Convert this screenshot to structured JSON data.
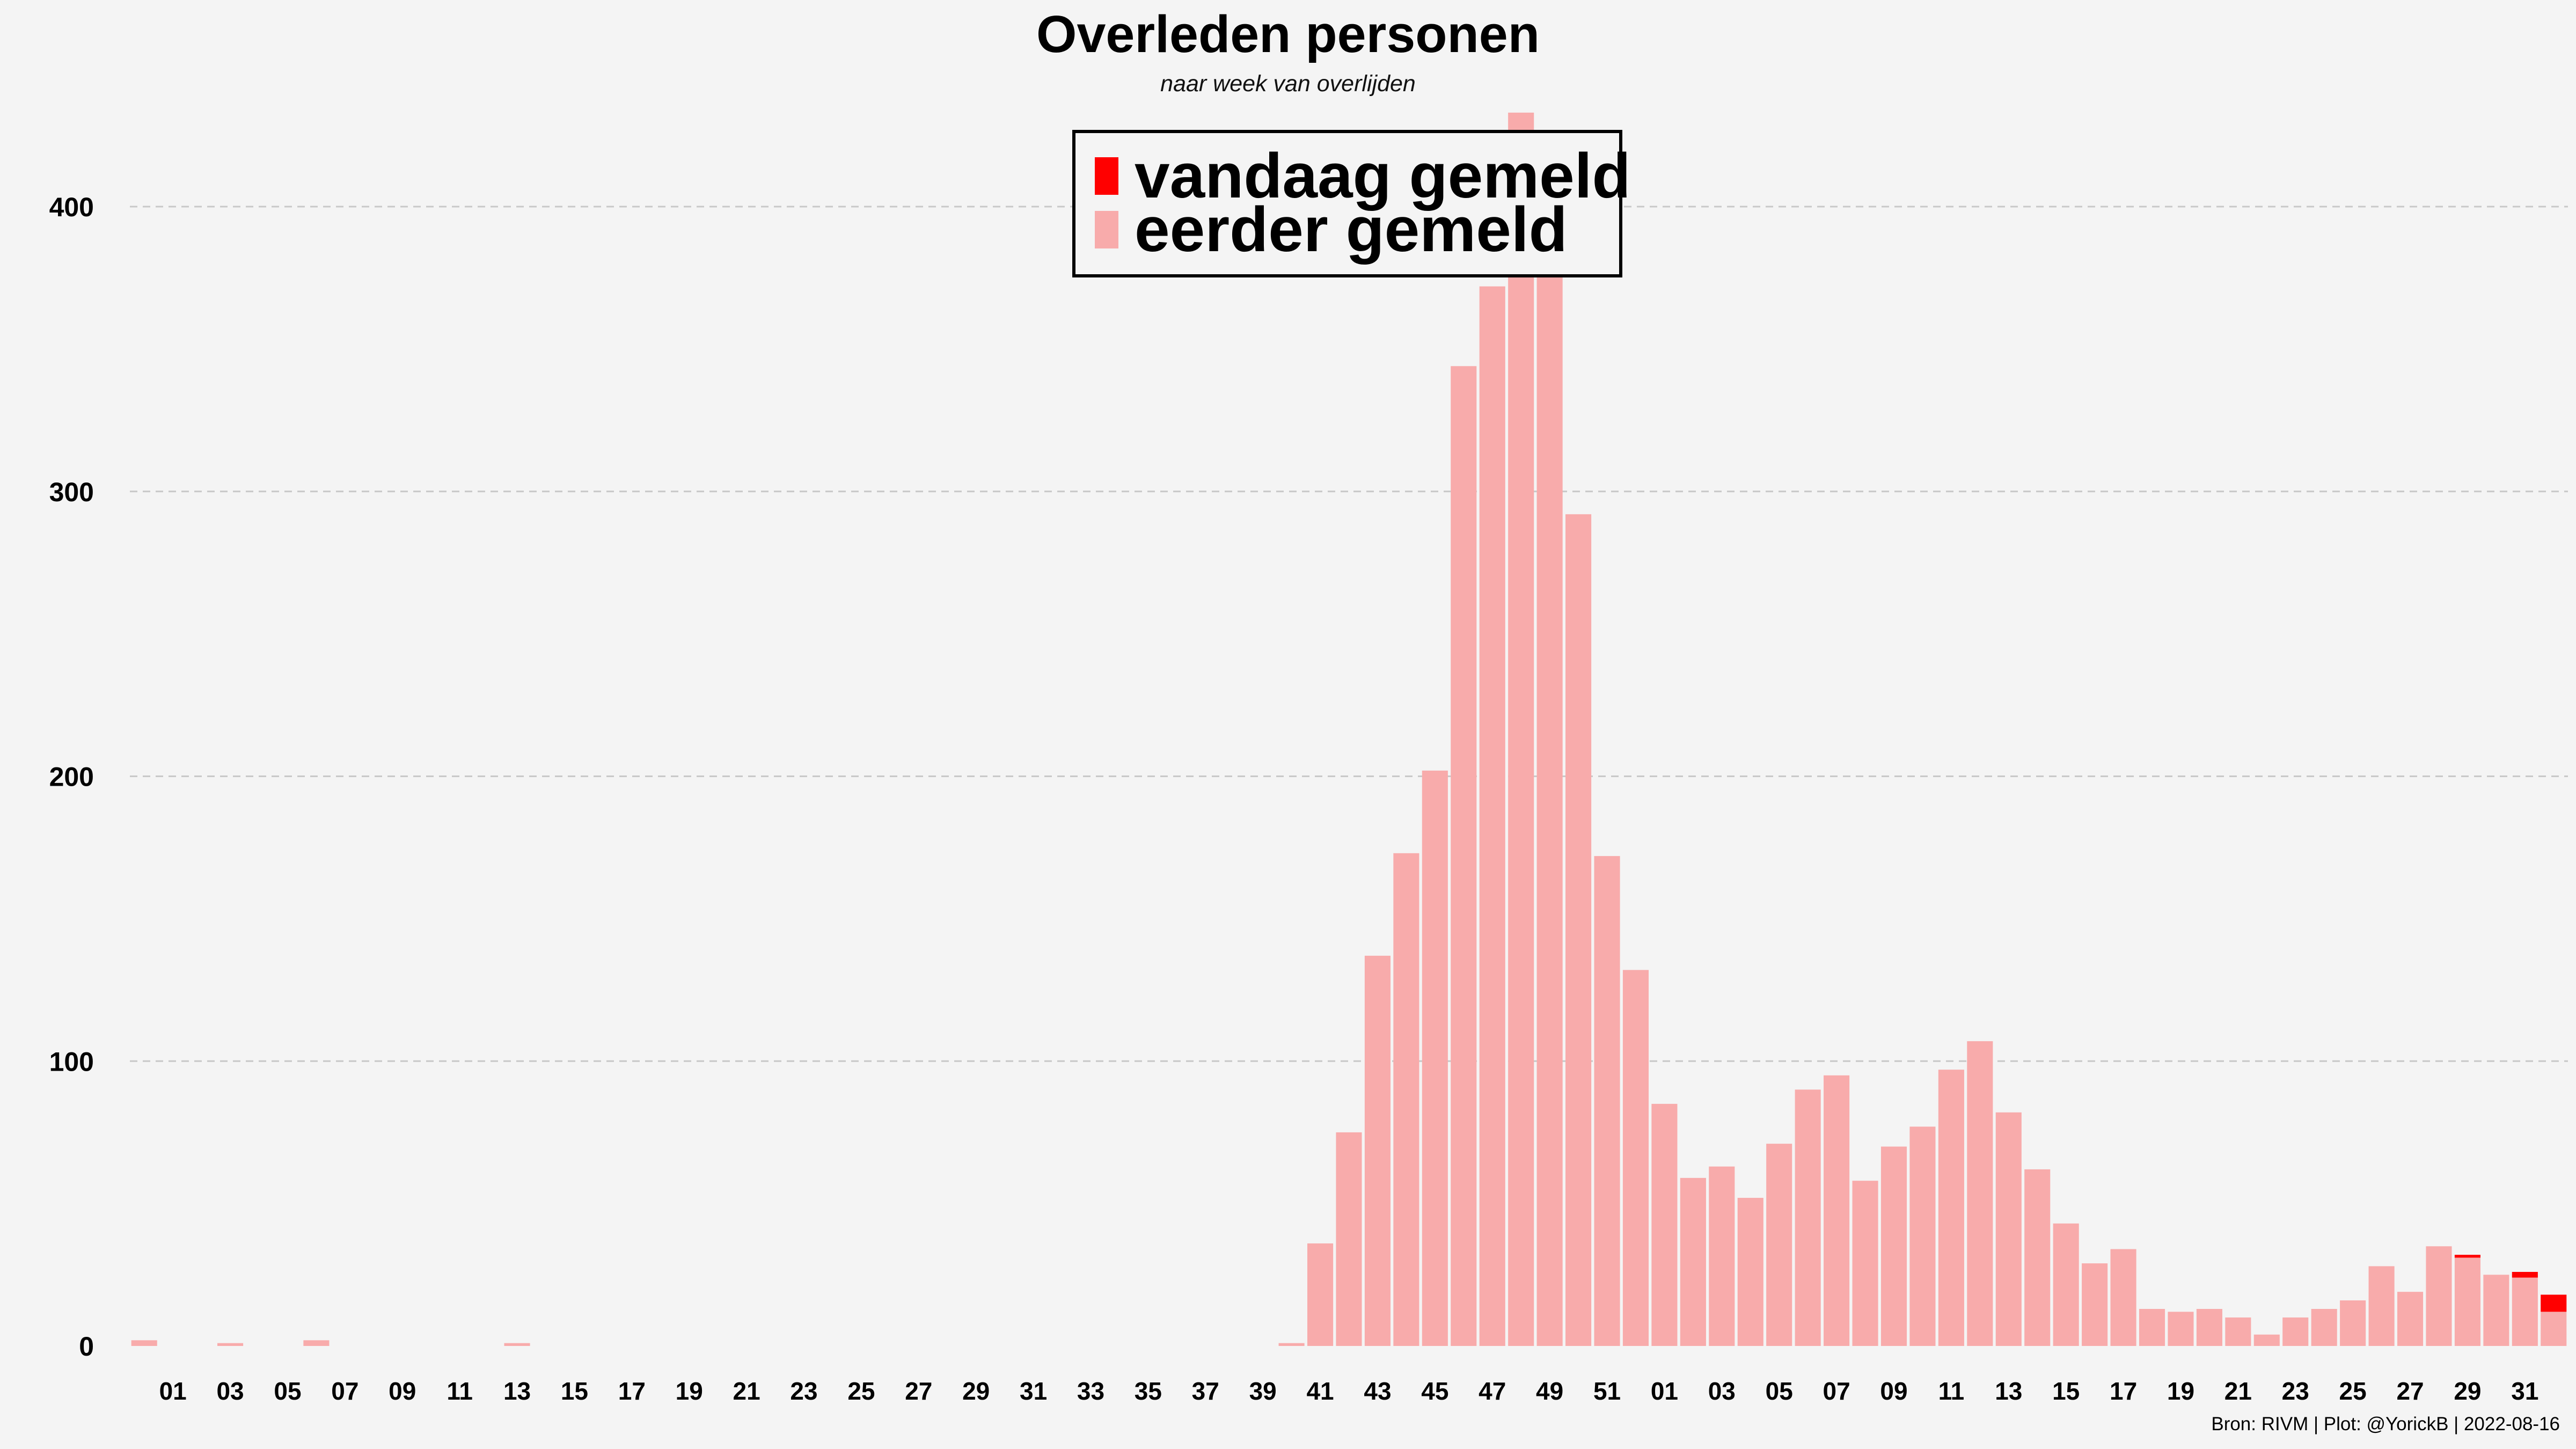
{
  "colors": {
    "background": "#f4f4f4",
    "bar_earlier": "#f8abab",
    "bar_today": "#ff0000",
    "grid": "#c8c8c8",
    "text": "#000000"
  },
  "chart_data": {
    "type": "bar",
    "stacked": true,
    "title": "Overleden personen",
    "subtitle": "naar week van overlijden",
    "xlabel": "",
    "ylabel": "",
    "ylim": [
      0,
      435
    ],
    "yticks": [
      0,
      100,
      200,
      300,
      400
    ],
    "grid": "horizontal-dashed",
    "legend_position": "top-center",
    "categories": [
      "53",
      "01",
      "02",
      "03",
      "04",
      "05",
      "06",
      "07",
      "08",
      "09",
      "10",
      "11",
      "12",
      "13",
      "14",
      "15",
      "16",
      "17",
      "18",
      "19",
      "20",
      "21",
      "22",
      "23",
      "24",
      "25",
      "26",
      "27",
      "28",
      "29",
      "30",
      "31",
      "32",
      "33",
      "34",
      "35",
      "36",
      "37",
      "38",
      "39",
      "40",
      "41",
      "42",
      "43",
      "44",
      "45",
      "46",
      "47",
      "48",
      "49",
      "50",
      "51",
      "52",
      "01",
      "02",
      "03",
      "04",
      "05",
      "06",
      "07",
      "08",
      "09",
      "10",
      "11",
      "12",
      "13",
      "14",
      "15",
      "16",
      "17",
      "18",
      "19",
      "20",
      "21",
      "22",
      "23",
      "24",
      "25",
      "26",
      "27",
      "28",
      "29",
      "30",
      "31",
      "32"
    ],
    "x_tick_labels": [
      "01",
      "03",
      "05",
      "07",
      "09",
      "11",
      "13",
      "15",
      "17",
      "19",
      "21",
      "23",
      "25",
      "27",
      "29",
      "31",
      "33",
      "35",
      "37",
      "39",
      "41",
      "43",
      "45",
      "47",
      "49",
      "51",
      "01",
      "03",
      "05",
      "07",
      "09",
      "11",
      "13",
      "15",
      "17",
      "19",
      "21",
      "23",
      "25",
      "27",
      "29",
      "31"
    ],
    "series": [
      {
        "name": "eerder gemeld",
        "values": [
          2,
          0,
          0,
          1,
          0,
          0,
          2,
          0,
          0,
          0,
          0,
          0,
          0,
          1,
          0,
          0,
          0,
          0,
          0,
          0,
          0,
          0,
          0,
          0,
          0,
          0,
          0,
          0,
          0,
          0,
          0,
          0,
          0,
          0,
          0,
          0,
          0,
          0,
          0,
          0,
          1,
          36,
          75,
          137,
          173,
          202,
          344,
          372,
          433,
          377,
          292,
          172,
          132,
          85,
          59,
          63,
          52,
          71,
          90,
          95,
          58,
          70,
          77,
          97,
          107,
          82,
          62,
          43,
          29,
          34,
          13,
          12,
          13,
          10,
          4,
          10,
          13,
          16,
          28,
          19,
          35,
          31,
          25,
          24,
          12
        ]
      },
      {
        "name": "vandaag gemeld",
        "values": [
          0,
          0,
          0,
          0,
          0,
          0,
          0,
          0,
          0,
          0,
          0,
          0,
          0,
          0,
          0,
          0,
          0,
          0,
          0,
          0,
          0,
          0,
          0,
          0,
          0,
          0,
          0,
          0,
          0,
          0,
          0,
          0,
          0,
          0,
          0,
          0,
          0,
          0,
          0,
          0,
          0,
          0,
          0,
          0,
          0,
          0,
          0,
          0,
          0,
          0,
          0,
          0,
          0,
          0,
          0,
          0,
          0,
          0,
          0,
          0,
          0,
          0,
          0,
          0,
          0,
          0,
          0,
          0,
          0,
          0,
          0,
          0,
          0,
          0,
          0,
          0,
          0,
          0,
          0,
          0,
          0,
          1,
          0,
          2,
          6
        ]
      }
    ],
    "legend": [
      "vandaag gemeld",
      "eerder gemeld"
    ],
    "source": "Bron: RIVM | Plot: @YorickB |  2022-08-16"
  }
}
